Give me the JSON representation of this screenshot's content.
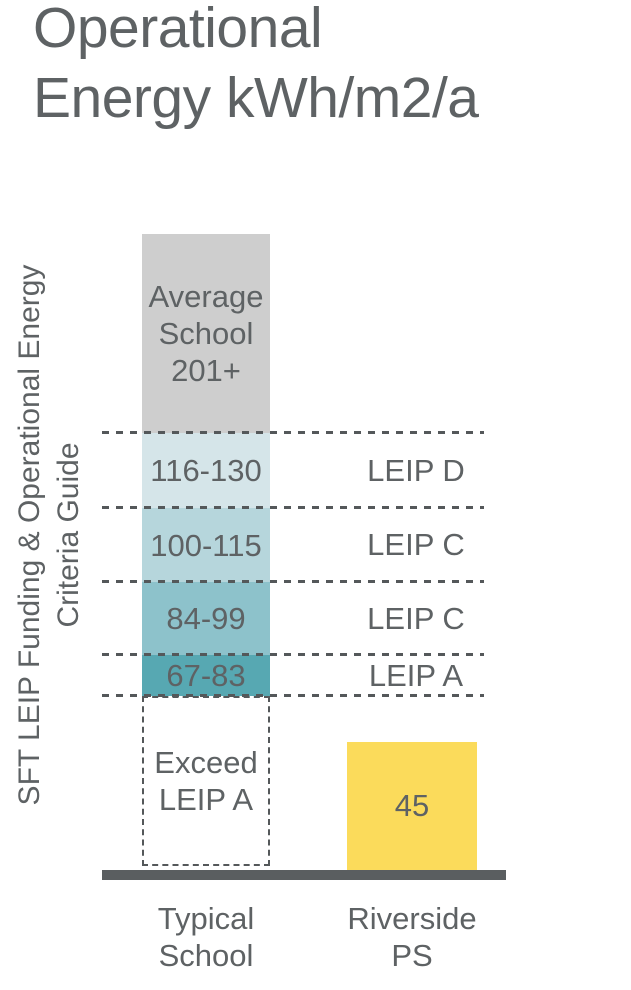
{
  "title": "Operational\nEnergy kWh/m2/a",
  "y_axis_label": "SFT LEIP Funding & Operational Energy\nCriteria Guide",
  "x_labels": {
    "typical": "Typical\nSchool",
    "riverside": "Riverside\nPS"
  },
  "axis_color": "#5a5e60",
  "text_color": "#5e6264",
  "chart_data": {
    "type": "bar",
    "title": "Operational Energy kWh/m2/a",
    "ylabel": "SFT LEIP Funding & Operational Energy Criteria Guide",
    "categories": [
      "Typical School",
      "Riverside PS"
    ],
    "typical_school_stack": [
      {
        "label": "Average\nSchool\n201+",
        "range_min": 201,
        "range_max": null,
        "grade": null,
        "color": "#cecece"
      },
      {
        "label": "116-130",
        "range_min": 116,
        "range_max": 130,
        "grade": "LEIP D",
        "color": "#d5e5e9"
      },
      {
        "label": "100-115",
        "range_min": 100,
        "range_max": 115,
        "grade": "LEIP C",
        "color": "#b6d6dc"
      },
      {
        "label": "84-99",
        "range_min": 84,
        "range_max": 99,
        "grade": "LEIP C",
        "color": "#8dc2cb"
      },
      {
        "label": "67-83",
        "range_min": 67,
        "range_max": 83,
        "grade": "LEIP A",
        "color": "#57a8b2"
      }
    ],
    "exceed_zone": {
      "label": "Exceed\nLEIP A"
    },
    "riverside_ps": {
      "value": 45,
      "label": "45",
      "color": "#fbdb5b"
    },
    "legend_position": "none",
    "grid": "dashed-band-dividers"
  }
}
